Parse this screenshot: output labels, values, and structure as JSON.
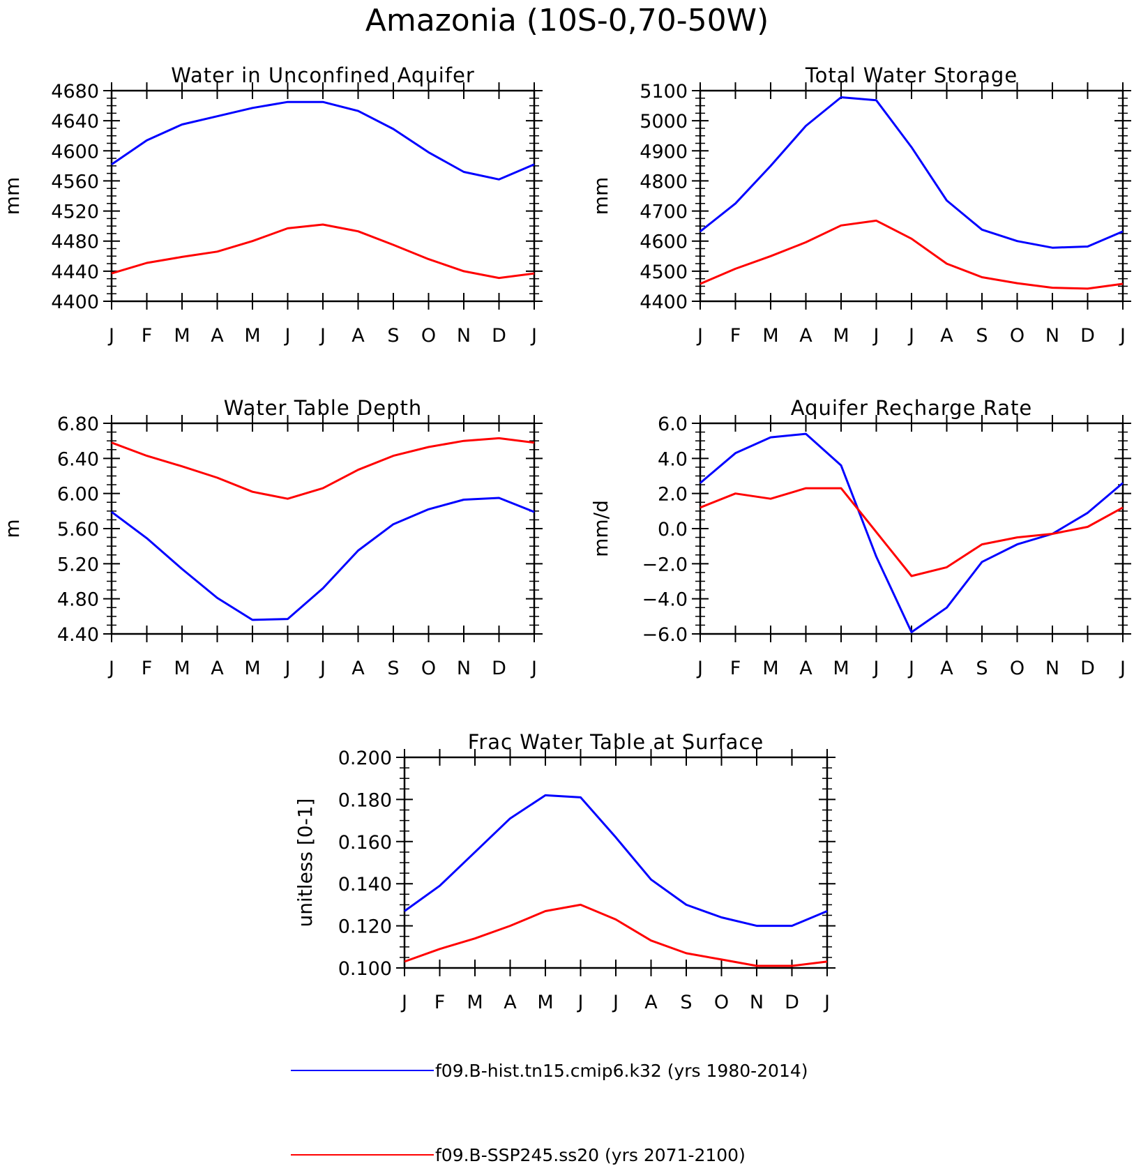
{
  "figure_title": "Amazonia (10S-0,70-50W)",
  "colors": {
    "hist": "#0000ff",
    "ssp": "#ff0000"
  },
  "legend": [
    {
      "label": "f09.B-hist.tn15.cmip6.k32 (yrs 1980-2014)",
      "color": "#0000ff"
    },
    {
      "label": "f09.B-SSP245.ss20 (yrs 2071-2100)",
      "color": "#ff0000"
    }
  ],
  "chart_data": [
    {
      "type": "line",
      "title": "Water in Unconfined Aquifer",
      "ylabel": "mm",
      "categories": [
        "J",
        "F",
        "M",
        "A",
        "M",
        "J",
        "J",
        "A",
        "S",
        "O",
        "N",
        "D",
        "J"
      ],
      "ylim": [
        4400,
        4680
      ],
      "yticks": [
        "4400",
        "4440",
        "4480",
        "4520",
        "4560",
        "4600",
        "4640",
        "4680"
      ],
      "series": [
        {
          "name": "f09.B-hist.tn15.cmip6.k32 (yrs 1980-2014)",
          "color": "#0000ff",
          "values": [
            4582,
            4614,
            4635,
            4646,
            4657,
            4665,
            4665,
            4653,
            4629,
            4598,
            4572,
            4562,
            4582
          ]
        },
        {
          "name": "f09.B-SSP245.ss20 (yrs 2071-2100)",
          "color": "#ff0000",
          "values": [
            4437,
            4451,
            4459,
            4466,
            4480,
            4497,
            4502,
            4493,
            4475,
            4456,
            4440,
            4431,
            4437
          ]
        }
      ]
    },
    {
      "type": "line",
      "title": "Total Water Storage",
      "ylabel": "mm",
      "categories": [
        "J",
        "F",
        "M",
        "A",
        "M",
        "J",
        "J",
        "A",
        "S",
        "O",
        "N",
        "D",
        "J"
      ],
      "ylim": [
        4400,
        5100
      ],
      "yticks": [
        "4400",
        "4500",
        "4600",
        "4700",
        "4800",
        "4900",
        "5000",
        "5100"
      ],
      "series": [
        {
          "name": "f09.B-hist.tn15.cmip6.k32 (yrs 1980-2014)",
          "color": "#0000ff",
          "values": [
            4632,
            4725,
            4850,
            4983,
            5078,
            5068,
            4912,
            4735,
            4638,
            4600,
            4578,
            4582,
            4632
          ]
        },
        {
          "name": "f09.B-SSP245.ss20 (yrs 2071-2100)",
          "color": "#ff0000",
          "values": [
            4458,
            4508,
            4550,
            4596,
            4652,
            4668,
            4608,
            4525,
            4480,
            4460,
            4445,
            4442,
            4458
          ]
        }
      ]
    },
    {
      "type": "line",
      "title": "Water Table Depth",
      "ylabel": "m",
      "categories": [
        "J",
        "F",
        "M",
        "A",
        "M",
        "J",
        "J",
        "A",
        "S",
        "O",
        "N",
        "D",
        "J"
      ],
      "ylim": [
        4.4,
        6.8
      ],
      "yticks": [
        "4.40",
        "4.80",
        "5.20",
        "5.60",
        "6.00",
        "6.40",
        "6.80"
      ],
      "series": [
        {
          "name": "f09.B-hist.tn15.cmip6.k32 (yrs 1980-2014)",
          "color": "#0000ff",
          "values": [
            5.79,
            5.49,
            5.14,
            4.81,
            4.56,
            4.57,
            4.92,
            5.35,
            5.65,
            5.82,
            5.93,
            5.95,
            5.79
          ]
        },
        {
          "name": "f09.B-SSP245.ss20 (yrs 2071-2100)",
          "color": "#ff0000",
          "values": [
            6.58,
            6.43,
            6.31,
            6.18,
            6.02,
            5.94,
            6.06,
            6.27,
            6.43,
            6.53,
            6.6,
            6.63,
            6.58
          ]
        }
      ]
    },
    {
      "type": "line",
      "title": "Aquifer Recharge Rate",
      "ylabel": "mm/d",
      "categories": [
        "J",
        "F",
        "M",
        "A",
        "M",
        "J",
        "J",
        "A",
        "S",
        "O",
        "N",
        "D",
        "J"
      ],
      "ylim": [
        -6.0,
        6.0
      ],
      "yticks": [
        "-6.0",
        "-4.0",
        "-2.0",
        "0.0",
        "2.0",
        "4.0",
        "6.0"
      ],
      "series": [
        {
          "name": "f09.B-hist.tn15.cmip6.k32 (yrs 1980-2014)",
          "color": "#0000ff",
          "values": [
            2.6,
            4.3,
            5.2,
            5.4,
            3.6,
            -1.6,
            -5.9,
            -4.5,
            -1.9,
            -0.9,
            -0.3,
            0.9,
            2.6
          ]
        },
        {
          "name": "f09.B-SSP245.ss20 (yrs 2071-2100)",
          "color": "#ff0000",
          "values": [
            1.2,
            2.0,
            1.7,
            2.3,
            2.3,
            -0.2,
            -2.7,
            -2.2,
            -0.9,
            -0.5,
            -0.3,
            0.1,
            1.2
          ]
        }
      ]
    },
    {
      "type": "line",
      "title": "Frac Water Table at Surface",
      "ylabel": "unitless [0-1]",
      "categories": [
        "J",
        "F",
        "M",
        "A",
        "M",
        "J",
        "J",
        "A",
        "S",
        "O",
        "N",
        "D",
        "J"
      ],
      "ylim": [
        0.1,
        0.2
      ],
      "yticks": [
        "0.100",
        "0.120",
        "0.140",
        "0.160",
        "0.180",
        "0.200"
      ],
      "series": [
        {
          "name": "f09.B-hist.tn15.cmip6.k32 (yrs 1980-2014)",
          "color": "#0000ff",
          "values": [
            0.127,
            0.139,
            0.155,
            0.171,
            0.182,
            0.181,
            0.162,
            0.142,
            0.13,
            0.124,
            0.12,
            0.12,
            0.127
          ]
        },
        {
          "name": "f09.B-SSP245.ss20 (yrs 2071-2100)",
          "color": "#ff0000",
          "values": [
            0.103,
            0.109,
            0.114,
            0.12,
            0.127,
            0.13,
            0.123,
            0.113,
            0.107,
            0.104,
            0.101,
            0.101,
            0.103
          ]
        }
      ]
    }
  ]
}
